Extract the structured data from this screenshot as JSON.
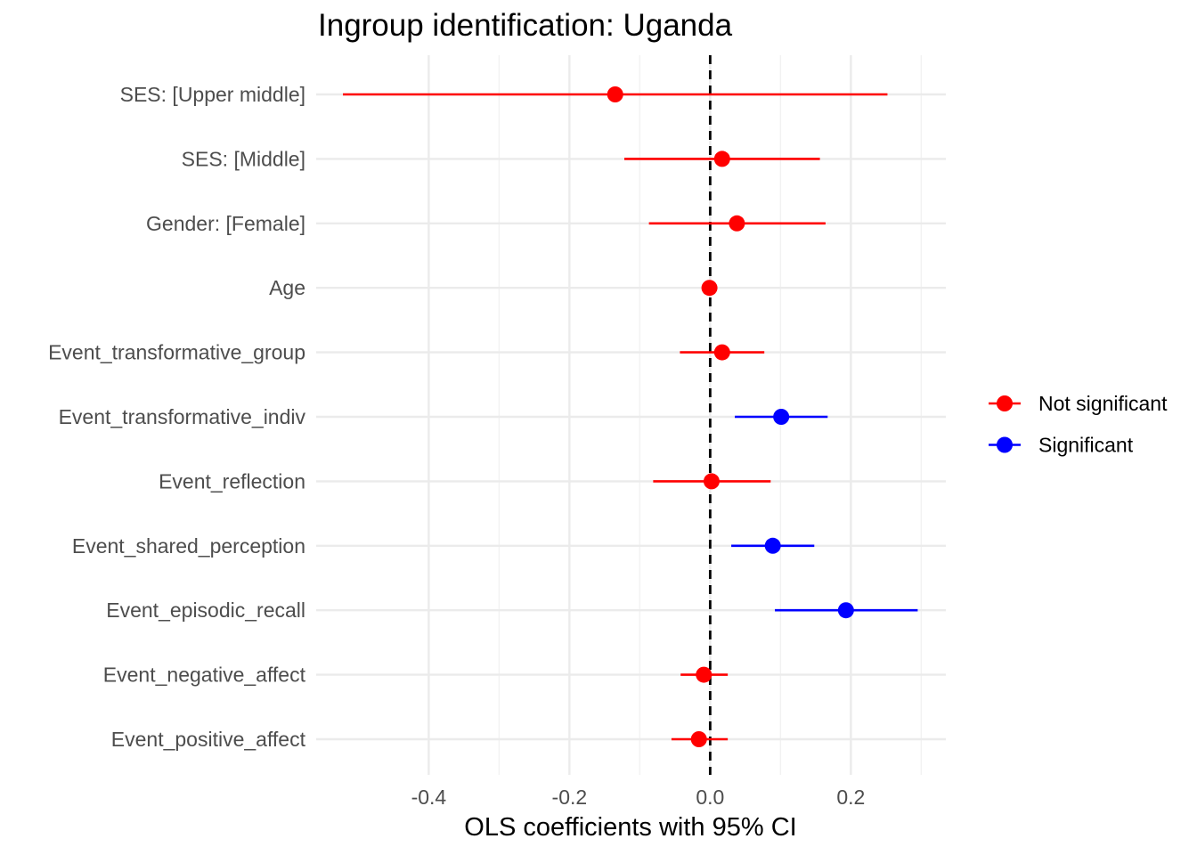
{
  "chart_data": {
    "type": "scatter",
    "subtype": "coefficient-plot",
    "title": "Ingroup identification: Uganda",
    "xlabel": "OLS coefficients with 95% CI",
    "ylabel": "",
    "xlim": [
      -0.56,
      0.335
    ],
    "x_ticks": [
      -0.4,
      -0.2,
      0.0,
      0.2
    ],
    "x_tick_labels": [
      "-0.4",
      "-0.2",
      "0.0",
      "0.2"
    ],
    "reference_line": {
      "x": 0,
      "style": "dashed",
      "color": "#000000"
    },
    "grid": true,
    "legend": {
      "position": "right",
      "entries": [
        {
          "label": "Not significant",
          "color": "#ff0000"
        },
        {
          "label": "Significant",
          "color": "#0000ff"
        }
      ]
    },
    "terms": [
      {
        "label": "SES:  [Upper middle]",
        "estimate": -0.135,
        "ci_low": -0.522,
        "ci_high": 0.252,
        "significant": false
      },
      {
        "label": "SES:  [Middle]",
        "estimate": 0.017,
        "ci_low": -0.122,
        "ci_high": 0.156,
        "significant": false
      },
      {
        "label": "Gender:  [Female]",
        "estimate": 0.038,
        "ci_low": -0.087,
        "ci_high": 0.164,
        "significant": false
      },
      {
        "label": "Age",
        "estimate": -0.001,
        "ci_low": -0.004,
        "ci_high": 0.002,
        "significant": false
      },
      {
        "label": "Event_transformative_group",
        "estimate": 0.017,
        "ci_low": -0.043,
        "ci_high": 0.077,
        "significant": false
      },
      {
        "label": "Event_transformative_indiv",
        "estimate": 0.101,
        "ci_low": 0.035,
        "ci_high": 0.167,
        "significant": true
      },
      {
        "label": "Event_reflection",
        "estimate": 0.002,
        "ci_low": -0.081,
        "ci_high": 0.086,
        "significant": false
      },
      {
        "label": "Event_shared_perception",
        "estimate": 0.089,
        "ci_low": 0.03,
        "ci_high": 0.148,
        "significant": true
      },
      {
        "label": "Event_episodic_recall",
        "estimate": 0.193,
        "ci_low": 0.092,
        "ci_high": 0.295,
        "significant": true
      },
      {
        "label": "Event_negative_affect",
        "estimate": -0.009,
        "ci_low": -0.042,
        "ci_high": 0.025,
        "significant": false
      },
      {
        "label": "Event_positive_affect",
        "estimate": -0.016,
        "ci_low": -0.055,
        "ci_high": 0.025,
        "significant": false
      }
    ]
  }
}
